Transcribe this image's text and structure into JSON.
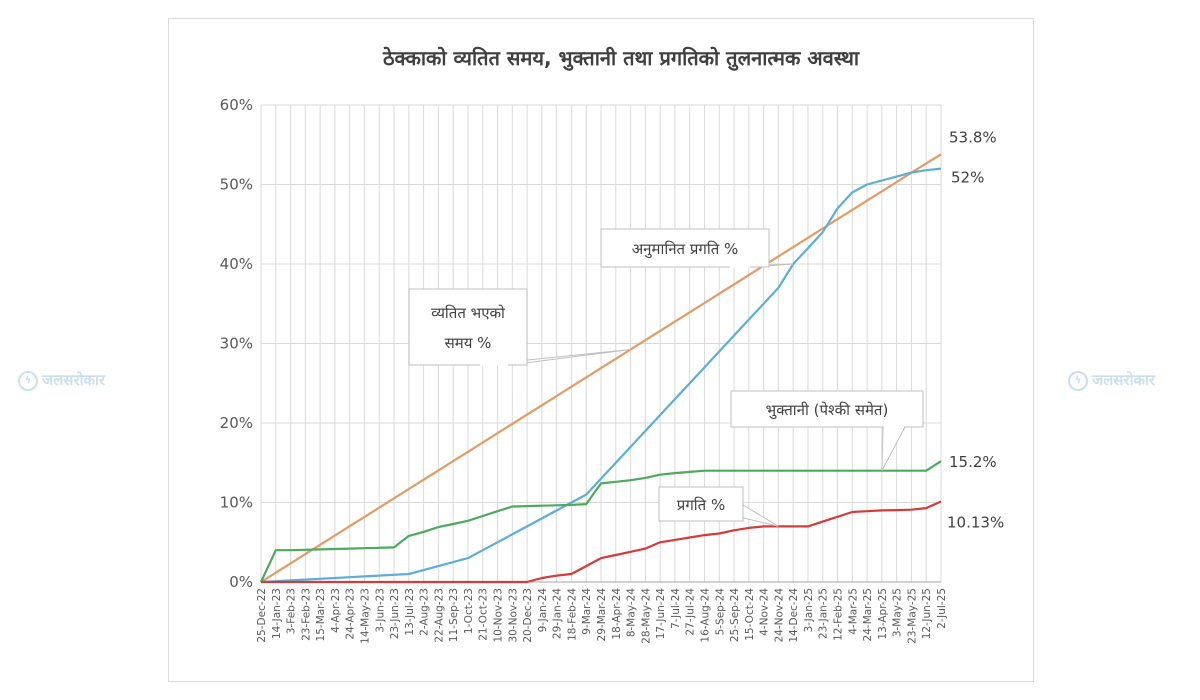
{
  "chart_data": {
    "type": "line",
    "title": "ठेक्काको व्यतित समय, भुक्तानी तथा प्रगतिको तुलनात्मक अवस्था",
    "ylim": [
      0,
      60
    ],
    "y_ticks": [
      "0%",
      "10%",
      "20%",
      "30%",
      "40%",
      "50%",
      "60%"
    ],
    "y_tick_values": [
      0,
      10,
      20,
      30,
      40,
      50,
      60
    ],
    "categories": [
      "25-Dec-22",
      "14-Jan-23",
      "3-Feb-23",
      "23-Feb-23",
      "15-Mar-23",
      "4-Apr-23",
      "24-Apr-23",
      "14-May-23",
      "3-Jun-23",
      "23-Jun-23",
      "13-Jul-23",
      "2-Aug-23",
      "22-Aug-23",
      "11-Sep-23",
      "1-Oct-23",
      "21-Oct-23",
      "10-Nov-23",
      "30-Nov-23",
      "20-Dec-23",
      "9-Jan-24",
      "29-Jan-24",
      "18-Feb-24",
      "9-Mar-24",
      "29-Mar-24",
      "18-Apr-24",
      "8-May-24",
      "28-May-24",
      "17-Jun-24",
      "7-Jul-24",
      "27-Jul-24",
      "16-Aug-24",
      "5-Sep-24",
      "25-Sep-24",
      "15-Oct-24",
      "4-Nov-24",
      "24-Nov-24",
      "14-Dec-24",
      "3-Jan-25",
      "23-Jan-25",
      "12-Feb-25",
      "4-Mar-25",
      "24-Mar-25",
      "13-Apr-25",
      "3-May-25",
      "23-May-25",
      "12-Jun-25",
      "2-Jul-25"
    ],
    "grid": true,
    "series": [
      {
        "name": "व्यतित भएको समय %",
        "color": "#e59a64",
        "values": [
          0,
          1.17,
          2.34,
          3.51,
          4.68,
          5.85,
          7.02,
          8.19,
          9.36,
          10.53,
          11.7,
          12.87,
          14.04,
          15.21,
          16.38,
          17.55,
          18.72,
          19.89,
          21.06,
          22.23,
          23.4,
          24.57,
          25.74,
          26.91,
          28.08,
          29.25,
          30.42,
          31.59,
          32.76,
          33.93,
          35.1,
          36.27,
          37.44,
          38.61,
          39.78,
          40.95,
          42.12,
          43.29,
          44.46,
          45.63,
          46.8,
          47.97,
          49.14,
          50.31,
          51.48,
          52.65,
          53.8
        ]
      },
      {
        "name": "अनुमानित प्रगति %",
        "color": "#5aaed8",
        "values": [
          0,
          0.1,
          0.2,
          0.3,
          0.4,
          0.5,
          0.6,
          0.7,
          0.8,
          0.9,
          1.0,
          1.5,
          2.0,
          2.5,
          3.0,
          4.0,
          5.0,
          6.0,
          7.0,
          8.0,
          9.0,
          10.0,
          11.0,
          13.0,
          15.0,
          17.0,
          19.0,
          21.0,
          23.0,
          25.0,
          27.0,
          29.0,
          31.0,
          33.0,
          35.0,
          37.0,
          40.0,
          42.0,
          44.0,
          47.0,
          49.0,
          50.0,
          50.5,
          51.0,
          51.5,
          51.8,
          52.0
        ]
      },
      {
        "name": "भुक्तानी (पेश्की समेत)",
        "color": "#4caa5f",
        "values": [
          0,
          4.0,
          4.0,
          4.05,
          4.1,
          4.15,
          4.2,
          4.25,
          4.3,
          4.35,
          5.8,
          6.3,
          6.9,
          7.3,
          7.7,
          8.3,
          8.9,
          9.5,
          9.55,
          9.6,
          9.65,
          9.7,
          9.8,
          12.4,
          12.6,
          12.8,
          13.1,
          13.5,
          13.7,
          13.85,
          14.0,
          14.0,
          14.0,
          14.0,
          14.0,
          14.0,
          14.0,
          14.0,
          14.0,
          14.0,
          14.0,
          14.0,
          14.0,
          14.0,
          14.0,
          14.0,
          15.2
        ]
      },
      {
        "name": "प्रगति %",
        "color": "#d63b3b",
        "values": [
          0,
          0,
          0,
          0,
          0,
          0,
          0,
          0,
          0,
          0,
          0,
          0,
          0,
          0,
          0,
          0,
          0,
          0,
          0,
          0.5,
          0.8,
          1.0,
          2.0,
          3.0,
          3.4,
          3.8,
          4.2,
          5.0,
          5.3,
          5.6,
          5.9,
          6.1,
          6.5,
          6.8,
          7.0,
          7.0,
          7.0,
          7.0,
          7.6,
          8.2,
          8.8,
          8.9,
          9.0,
          9.05,
          9.1,
          9.3,
          10.13
        ]
      }
    ],
    "end_labels": [
      "53.8%",
      "52%",
      "15.2%",
      "10.13%"
    ],
    "callouts": [
      {
        "lines": [
          "व्यतित भएको",
          "समय %"
        ],
        "target_index": 25,
        "series": 0
      },
      {
        "lines": [
          "अनुमानित प्रगति %"
        ],
        "target_index": 36,
        "series": 1
      },
      {
        "lines": [
          "भुक्तानी (पेश्की समेत)"
        ],
        "target_index": 42,
        "series": 2
      },
      {
        "lines": [
          "प्रगति %"
        ],
        "target_index": 35,
        "series": 3
      }
    ]
  },
  "watermark": {
    "text": "जलसरोकार",
    "icon": "lightning-logo-icon",
    "color": "#c9dff0"
  }
}
